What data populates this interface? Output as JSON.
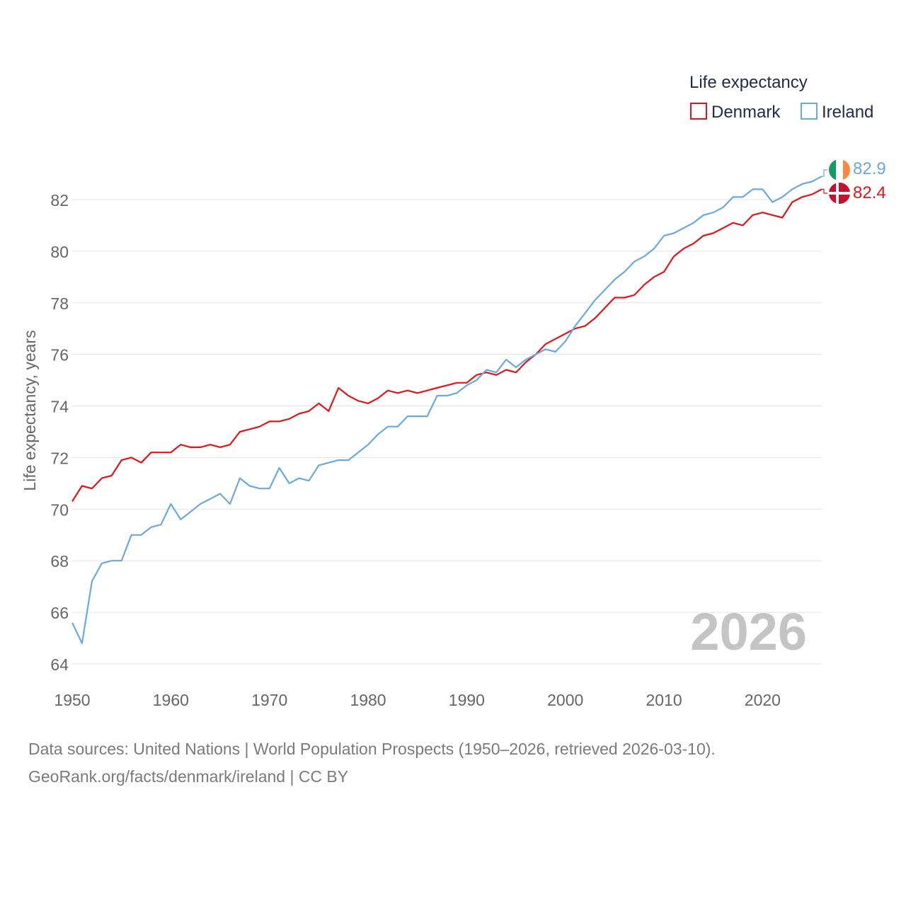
{
  "chart_data": {
    "type": "line",
    "legend_title": "Life expectancy",
    "ylabel": "Life expectancy, years",
    "xlabel": "",
    "xlim": [
      1950,
      2026
    ],
    "ylim": [
      64,
      83.5
    ],
    "x_ticks": [
      1950,
      1960,
      1970,
      1980,
      1990,
      2000,
      2010,
      2020
    ],
    "y_ticks": [
      64,
      66,
      68,
      70,
      72,
      74,
      76,
      78,
      80,
      82
    ],
    "grid": true,
    "legend_position": "top-right",
    "watermark_year": "2026",
    "x": [
      1950,
      1951,
      1952,
      1953,
      1954,
      1955,
      1956,
      1957,
      1958,
      1959,
      1960,
      1961,
      1962,
      1963,
      1964,
      1965,
      1966,
      1967,
      1968,
      1969,
      1970,
      1971,
      1972,
      1973,
      1974,
      1975,
      1976,
      1977,
      1978,
      1979,
      1980,
      1981,
      1982,
      1983,
      1984,
      1985,
      1986,
      1987,
      1988,
      1989,
      1990,
      1991,
      1992,
      1993,
      1994,
      1995,
      1996,
      1997,
      1998,
      1999,
      2000,
      2001,
      2002,
      2003,
      2004,
      2005,
      2006,
      2007,
      2008,
      2009,
      2010,
      2011,
      2012,
      2013,
      2014,
      2015,
      2016,
      2017,
      2018,
      2019,
      2020,
      2021,
      2022,
      2023,
      2024,
      2025,
      2026
    ],
    "series": [
      {
        "name": "Denmark",
        "color": "#e3151a",
        "end_label": "82.4",
        "flag": "denmark-flag",
        "values": [
          70.3,
          70.9,
          70.8,
          71.2,
          71.3,
          71.9,
          72.0,
          71.8,
          72.2,
          72.2,
          72.2,
          72.5,
          72.4,
          72.4,
          72.5,
          72.4,
          72.5,
          73.0,
          73.1,
          73.2,
          73.4,
          73.4,
          73.5,
          73.7,
          73.8,
          74.1,
          73.8,
          74.7,
          74.4,
          74.2,
          74.1,
          74.3,
          74.6,
          74.5,
          74.6,
          74.5,
          74.6,
          74.7,
          74.8,
          74.9,
          74.9,
          75.2,
          75.3,
          75.2,
          75.4,
          75.3,
          75.7,
          76.0,
          76.4,
          76.6,
          76.8,
          77.0,
          77.1,
          77.4,
          77.8,
          78.2,
          78.2,
          78.3,
          78.7,
          79.0,
          79.2,
          79.8,
          80.1,
          80.3,
          80.6,
          80.7,
          80.9,
          81.1,
          81.0,
          81.4,
          81.5,
          81.4,
          81.3,
          81.9,
          82.1,
          82.2,
          82.4
        ]
      },
      {
        "name": "Ireland",
        "color": "#6aa9e0",
        "end_label": "82.9",
        "flag": "ireland-flag",
        "values": [
          65.6,
          64.8,
          67.2,
          67.9,
          68.0,
          68.0,
          69.0,
          69.0,
          69.3,
          69.4,
          70.2,
          69.6,
          69.9,
          70.2,
          70.4,
          70.6,
          70.2,
          71.2,
          70.9,
          70.8,
          70.8,
          71.6,
          71.0,
          71.2,
          71.1,
          71.7,
          71.8,
          71.9,
          71.9,
          72.2,
          72.5,
          72.9,
          73.2,
          73.2,
          73.6,
          73.6,
          73.6,
          74.4,
          74.4,
          74.5,
          74.8,
          75.0,
          75.4,
          75.3,
          75.8,
          75.5,
          75.8,
          76.0,
          76.2,
          76.1,
          76.5,
          77.1,
          77.6,
          78.1,
          78.5,
          78.9,
          79.2,
          79.6,
          79.8,
          80.1,
          80.6,
          80.7,
          80.9,
          81.1,
          81.4,
          81.5,
          81.7,
          82.1,
          82.1,
          82.4,
          82.4,
          81.9,
          82.1,
          82.4,
          82.6,
          82.7,
          82.9
        ]
      }
    ]
  },
  "footer": {
    "sources": "Data sources: United Nations | World Population Prospects (1950–2026, retrieved 2026-03-10).",
    "credit": "GeoRank.org/facts/denmark/ireland | CC BY"
  }
}
